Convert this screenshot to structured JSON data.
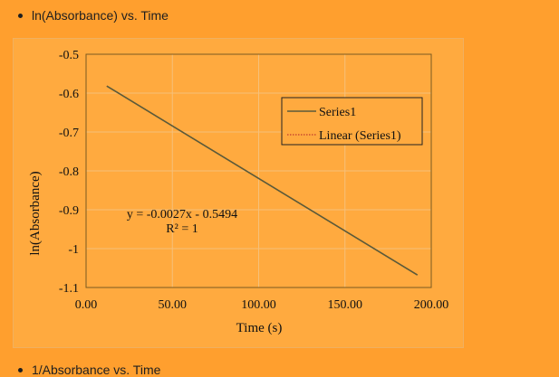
{
  "bullets": [
    {
      "label": "ln(Absorbance) vs. Time"
    },
    {
      "label": "1/Absorbance vs. Time"
    }
  ],
  "chart_data": {
    "type": "line",
    "xlabel": "Time (s)",
    "ylabel": "ln(Absorbance)",
    "xlim": [
      0,
      200
    ],
    "ylim": [
      -1.1,
      -0.5
    ],
    "x_ticks": [
      "0.00",
      "50.00",
      "100.00",
      "150.00",
      "200.00"
    ],
    "y_ticks": [
      "-0.5",
      "-0.6",
      "-0.7",
      "-0.8",
      "-0.9",
      "-1",
      "-1.1"
    ],
    "grid": true,
    "legend_position": "top-right",
    "series": [
      {
        "name": "Series1",
        "x": [
          12,
          192
        ],
        "y": [
          -0.5818,
          -1.0678
        ],
        "color": "#5a5a3a"
      }
    ],
    "trendline": {
      "name": "Linear (Series1)",
      "slope": -0.0027,
      "intercept": -0.5494,
      "color": "#c0392b"
    },
    "annotations": {
      "equation": "y = -0.0027x - 0.5494",
      "r_squared": "R² = 1"
    }
  }
}
